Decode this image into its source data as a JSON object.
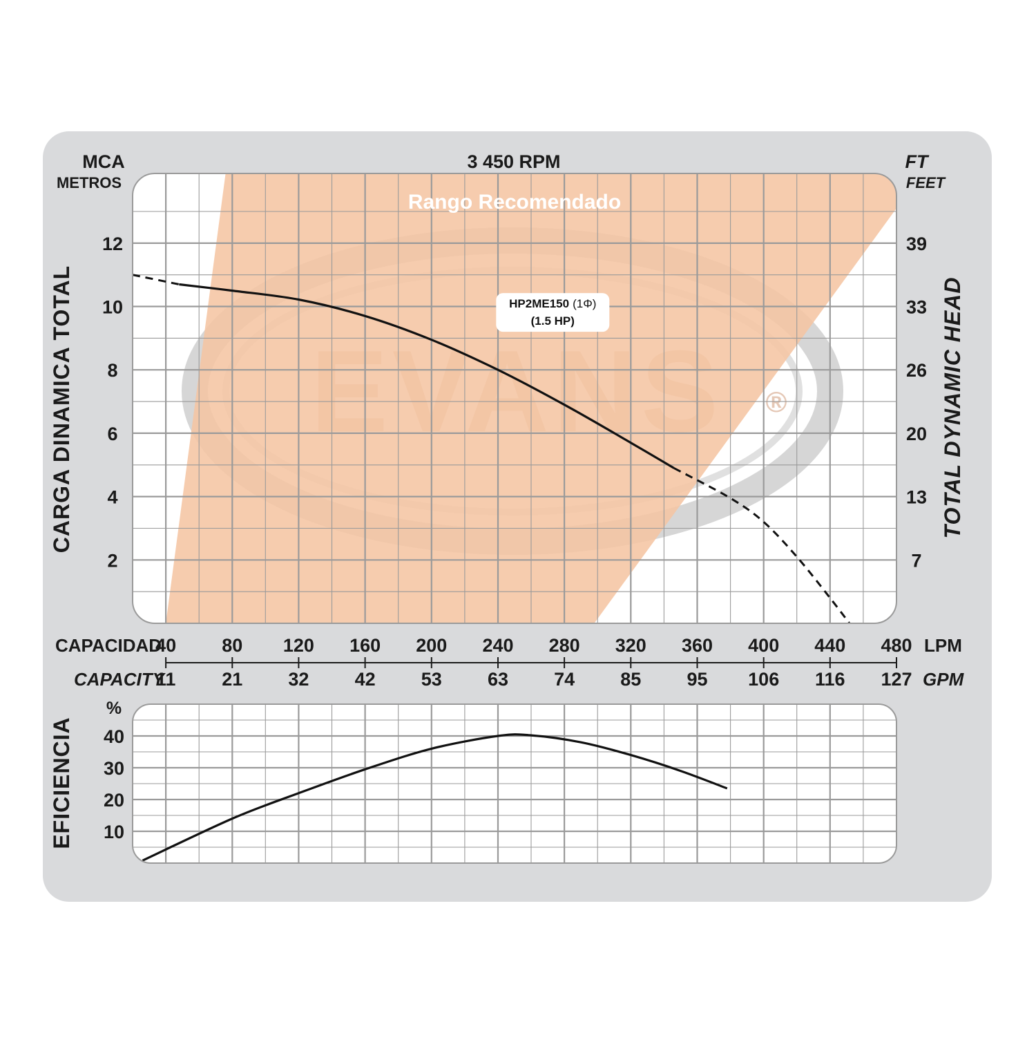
{
  "colors": {
    "frame": "#d9dadc",
    "panel": "#ffffff",
    "grid": "#9a9a9a",
    "recommended_range": "#f5c5a3",
    "curve": "#111111",
    "watermark": "#d09a7a"
  },
  "header": {
    "left_unit": "MCA",
    "left_unit_sub": "METROS",
    "center": "3 450 RPM",
    "right_unit": "FT",
    "right_unit_sub": "FEET"
  },
  "watermark": {
    "text": "EVANS",
    "mark": "®"
  },
  "chart_data": [
    {
      "type": "line",
      "title": "3 450 RPM",
      "ylabel": "CARGA DINAMICA TOTAL",
      "ylabel_right": "TOTAL DYNAMIC HEAD",
      "y_unit": "MCA",
      "y_unit_sub": "METROS",
      "y_right_unit": "FT",
      "y_right_unit_sub": "FEET",
      "xlabel": "CAPACIDAD",
      "xlabel_alt": "CAPACITY",
      "x_unit": "LPM",
      "x_alt_unit": "GPM",
      "xlim": [
        20,
        480
      ],
      "ylim": [
        0,
        14.2
      ],
      "grid": true,
      "x_ticks": [
        40,
        80,
        120,
        160,
        200,
        240,
        280,
        320,
        360,
        400,
        440,
        480
      ],
      "x_alt_ticks": [
        "11",
        "21",
        "32",
        "42",
        "53",
        "63",
        "74",
        "85",
        "95",
        "106",
        "116",
        "127"
      ],
      "y_ticks": [
        2,
        4,
        6,
        8,
        10,
        12
      ],
      "y_right_ticks": [
        "7",
        "13",
        "20",
        "26",
        "33",
        "39"
      ],
      "recommended_range": {
        "label": "Rango Recomendado",
        "polygon": [
          [
            40,
            0
          ],
          [
            76,
            14.2
          ],
          [
            480,
            14.2
          ],
          [
            480,
            13.1
          ],
          [
            298,
            0
          ]
        ]
      },
      "series": [
        {
          "name": "HP2ME150",
          "label_main": "HP2ME150",
          "label_phase": "(1Φ)",
          "label_power": "(1.5 HP)",
          "label_at": [
            273,
            9.9
          ],
          "dashed_before": 48,
          "dashed_after": 346,
          "points": [
            [
              20,
              11.0
            ],
            [
              48,
              10.7
            ],
            [
              80,
              10.5
            ],
            [
              120,
              10.22
            ],
            [
              160,
              9.7
            ],
            [
              200,
              8.95
            ],
            [
              240,
              8.0
            ],
            [
              280,
              6.9
            ],
            [
              320,
              5.7
            ],
            [
              346,
              4.9
            ],
            [
              380,
              3.95
            ],
            [
              400,
              3.2
            ],
            [
              420,
              2.1
            ],
            [
              440,
              0.8
            ],
            [
              456,
              -0.3
            ]
          ]
        }
      ]
    },
    {
      "type": "line",
      "ylabel": "EFICIENCIA",
      "y_unit": "%",
      "xlim": [
        20,
        480
      ],
      "ylim": [
        0,
        50
      ],
      "grid": true,
      "y_ticks": [
        10,
        20,
        30,
        40
      ],
      "series": [
        {
          "name": "HP2ME150",
          "points": [
            [
              26,
              0.8
            ],
            [
              80,
              14
            ],
            [
              120,
              22
            ],
            [
              160,
              29.5
            ],
            [
              200,
              36
            ],
            [
              240,
              40
            ],
            [
              260,
              40.2
            ],
            [
              290,
              38
            ],
            [
              320,
              34
            ],
            [
              350,
              29
            ],
            [
              378,
              23.5
            ]
          ]
        }
      ]
    }
  ]
}
